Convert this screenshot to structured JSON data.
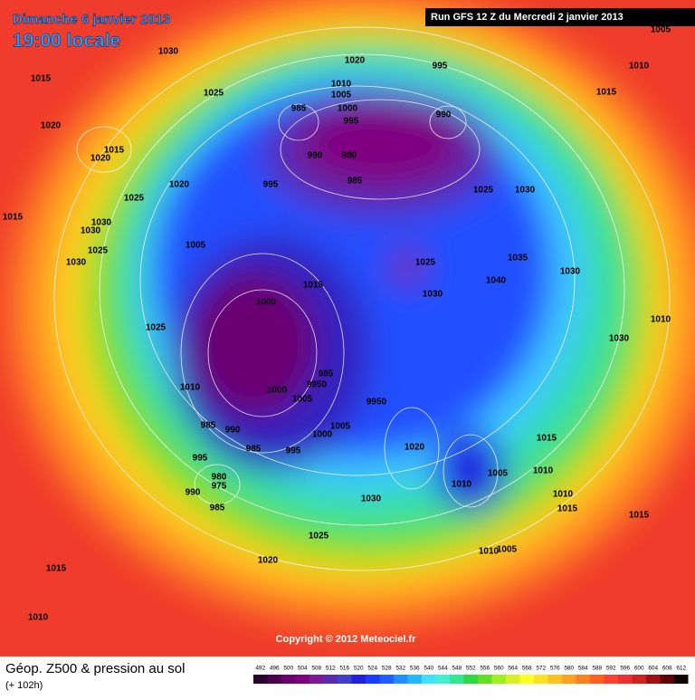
{
  "header": {
    "date": "Dimanche 6 janvier 2013",
    "time": "19:00 locale",
    "run": "Run GFS 12 Z du Mercredi 2 janvier 2013"
  },
  "copyright": "Copyright © 2012 Meteociel.fr",
  "footer": {
    "title": "Géop. Z500 & pression au sol",
    "lead": "(+ 102h)"
  },
  "colorbar": {
    "levels": [
      492,
      496,
      500,
      504,
      508,
      512,
      516,
      520,
      524,
      528,
      532,
      536,
      540,
      544,
      548,
      552,
      556,
      560,
      564,
      568,
      572,
      576,
      580,
      584,
      588,
      592,
      596,
      600,
      604,
      608,
      612
    ],
    "colors": [
      "#2b0030",
      "#4a004f",
      "#6a006f",
      "#800080",
      "#7a1a9a",
      "#5a2ab0",
      "#3f3fd0",
      "#2020e0",
      "#1a3cff",
      "#1e60ff",
      "#2090ff",
      "#20b8ff",
      "#40e0ff",
      "#40f0d0",
      "#30e890",
      "#30d840",
      "#60e020",
      "#a0f020",
      "#d8f020",
      "#ffff20",
      "#ffe020",
      "#ffc020",
      "#ffa020",
      "#ff8020",
      "#ff6020",
      "#ff4030",
      "#f03030",
      "#d02020",
      "#a01010",
      "#600000",
      "#100000"
    ]
  },
  "pressure_labels": [
    "1005",
    "1030",
    "1020",
    "995",
    "1010",
    "1015",
    "1025",
    "1010",
    "1005",
    "1015",
    "985",
    "1000",
    "990",
    "1020",
    "995",
    "1015",
    "1020",
    "990",
    "980",
    "985",
    "1020",
    "995",
    "1025",
    "1030",
    "1025",
    "1015",
    "1030",
    "1030",
    "1005",
    "1025",
    "1035",
    "1025",
    "1030",
    "1030",
    "1040",
    "1015",
    "1030",
    "1000",
    "1010",
    "1025",
    "1030",
    "985",
    "9950",
    "1010",
    "1000",
    "1005",
    "9950",
    "985",
    "990",
    "1005",
    "1000",
    "1015",
    "985",
    "995",
    "995",
    "1020",
    "1010",
    "1005",
    "980",
    "975",
    "1010",
    "990",
    "1010",
    "1030",
    "985",
    "1015",
    "1015",
    "1025",
    "1010",
    "1005",
    "1020",
    "1015",
    "1010"
  ]
}
